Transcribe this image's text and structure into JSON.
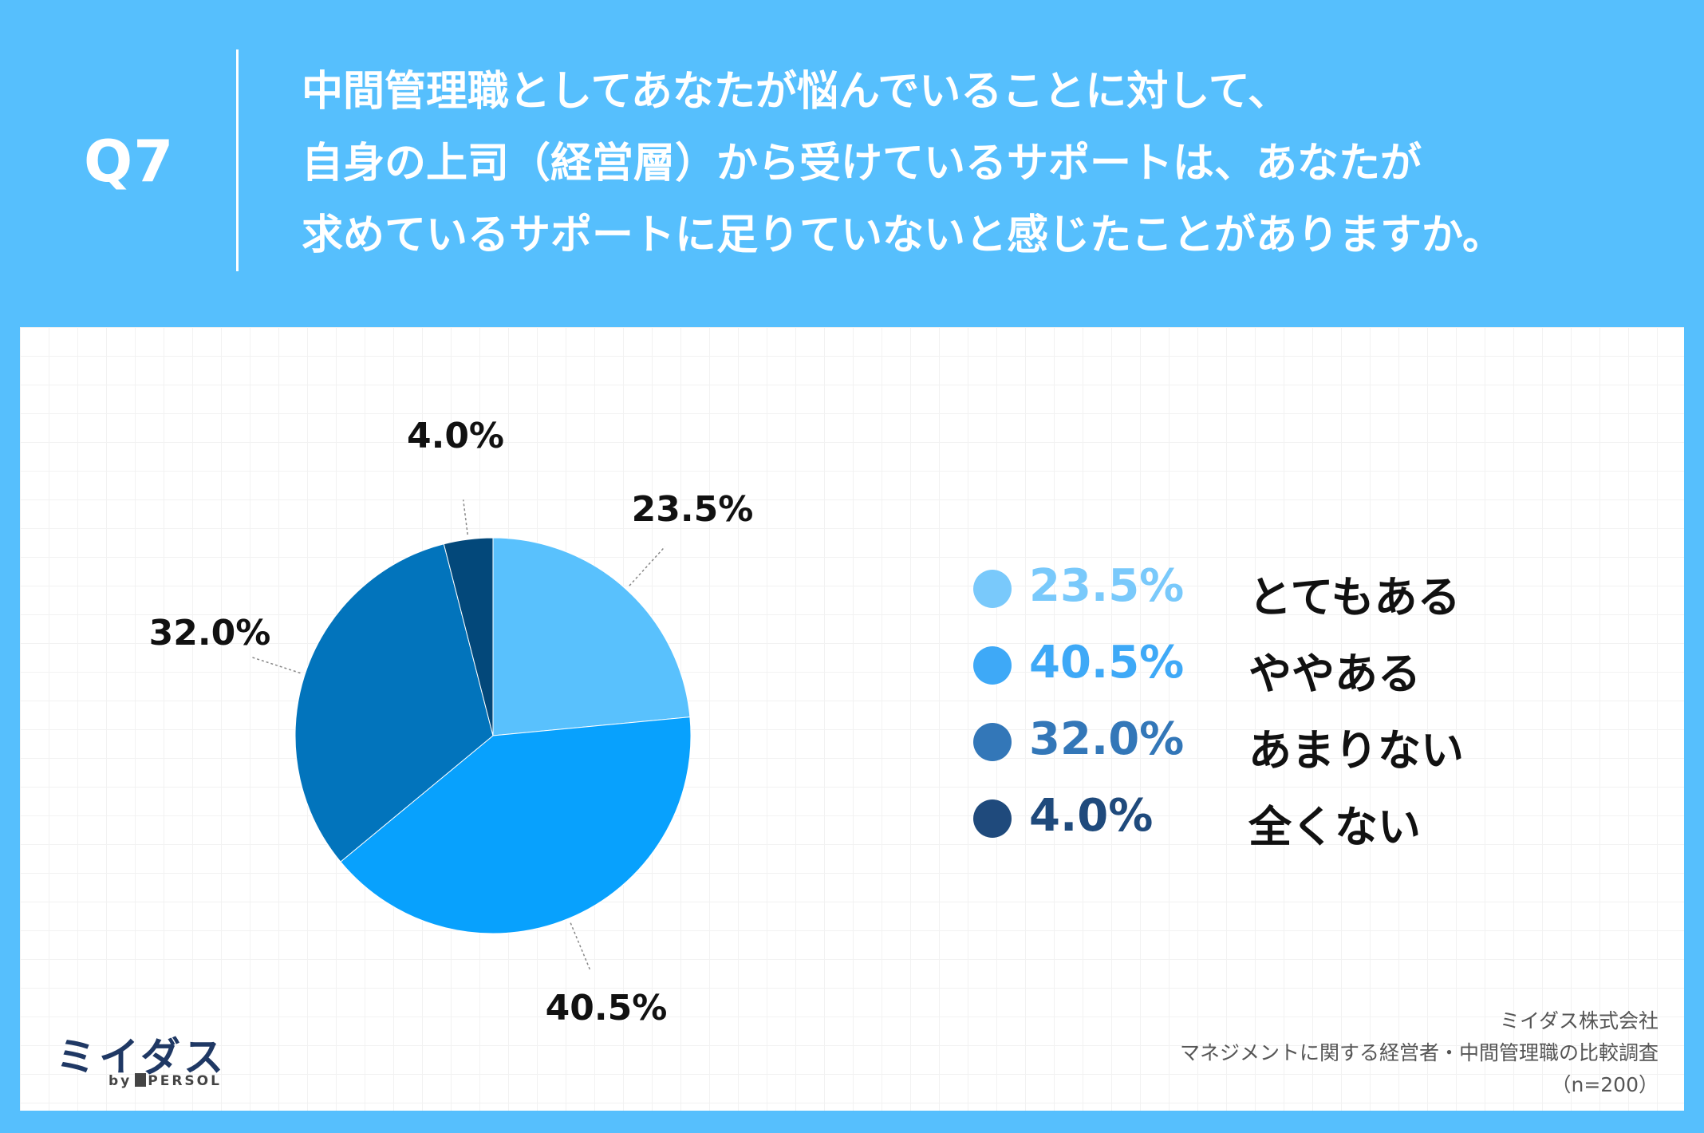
{
  "header": {
    "q_label": "Q7",
    "question_lines": [
      "中間管理職としてあなたが悩んでいることに対して、",
      "自身の上司（経営層）から受けているサポートは、あなたが",
      "求めているサポートに足りていないと感じたことがありますか。"
    ]
  },
  "chart_data": {
    "type": "pie",
    "title": "",
    "slices": [
      {
        "label": "とてもある",
        "value": 23.5,
        "display": "23.5%",
        "color": "#59c1fd",
        "legend_color": "#79c9fb"
      },
      {
        "label": "ややある",
        "value": 40.5,
        "display": "40.5%",
        "color": "#08a1fd",
        "legend_color": "#3ea9f7"
      },
      {
        "label": "あまりない",
        "value": 32.0,
        "display": "32.0%",
        "color": "#0274bc",
        "legend_color": "#3377b8"
      },
      {
        "label": "全くない",
        "value": 4.0,
        "display": "4.0%",
        "color": "#03487a",
        "legend_color": "#1f4a7c"
      }
    ],
    "start_angle": "12 o'clock",
    "direction": "clockwise",
    "legend_position": "right"
  },
  "logo": {
    "main": "ミイダス",
    "by": "by",
    "brand": "PERSOL"
  },
  "source": {
    "company": "ミイダス株式会社",
    "survey": "マネジメントに関する経営者・中間管理職の比較調査",
    "sample": "（n=200）"
  }
}
